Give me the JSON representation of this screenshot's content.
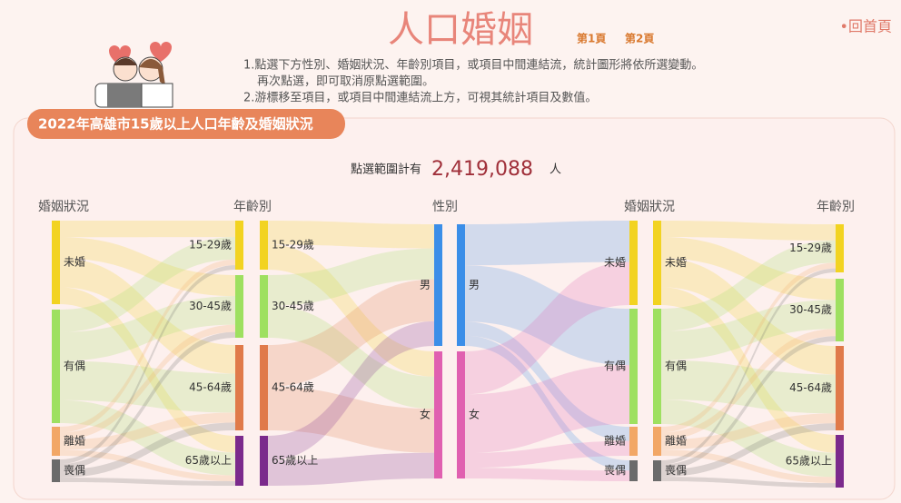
{
  "header": {
    "title": "人口婚姻",
    "pages": [
      "第1頁",
      "第2頁"
    ],
    "home": "•回首頁",
    "instructions": [
      "1.點選下方性別、婚姻狀況、年齡別項目，或項目中間連結流，統計圖形將依所選變動。",
      "再次點選，即可取消原點選範圍。",
      "2.游標移至項目，或項目中間連結流上方，可視其統計項目及數值。"
    ]
  },
  "panel": {
    "title": "2022年高雄市15歲以上人口年齡及婚姻狀況",
    "summary_label": "點選範圍計有",
    "total": "2,419,088",
    "unit": "人"
  },
  "columns": [
    {
      "title": "婚姻狀況",
      "nodes": [
        "未婚",
        "有偶",
        "離婚",
        "喪偶"
      ]
    },
    {
      "title": "年齡別",
      "nodes": [
        "15-29歲",
        "30-45歲",
        "45-64歲",
        "65歲以上"
      ]
    },
    {
      "title": "性別",
      "nodes": [
        "男",
        "女"
      ]
    },
    {
      "title": "婚姻狀況",
      "nodes": [
        "未婚",
        "有偶",
        "離婚",
        "喪偶"
      ]
    },
    {
      "title": "年齡別",
      "nodes": [
        "15-29歲",
        "30-45歲",
        "45-64歲",
        "65歲以上"
      ]
    }
  ]
}
